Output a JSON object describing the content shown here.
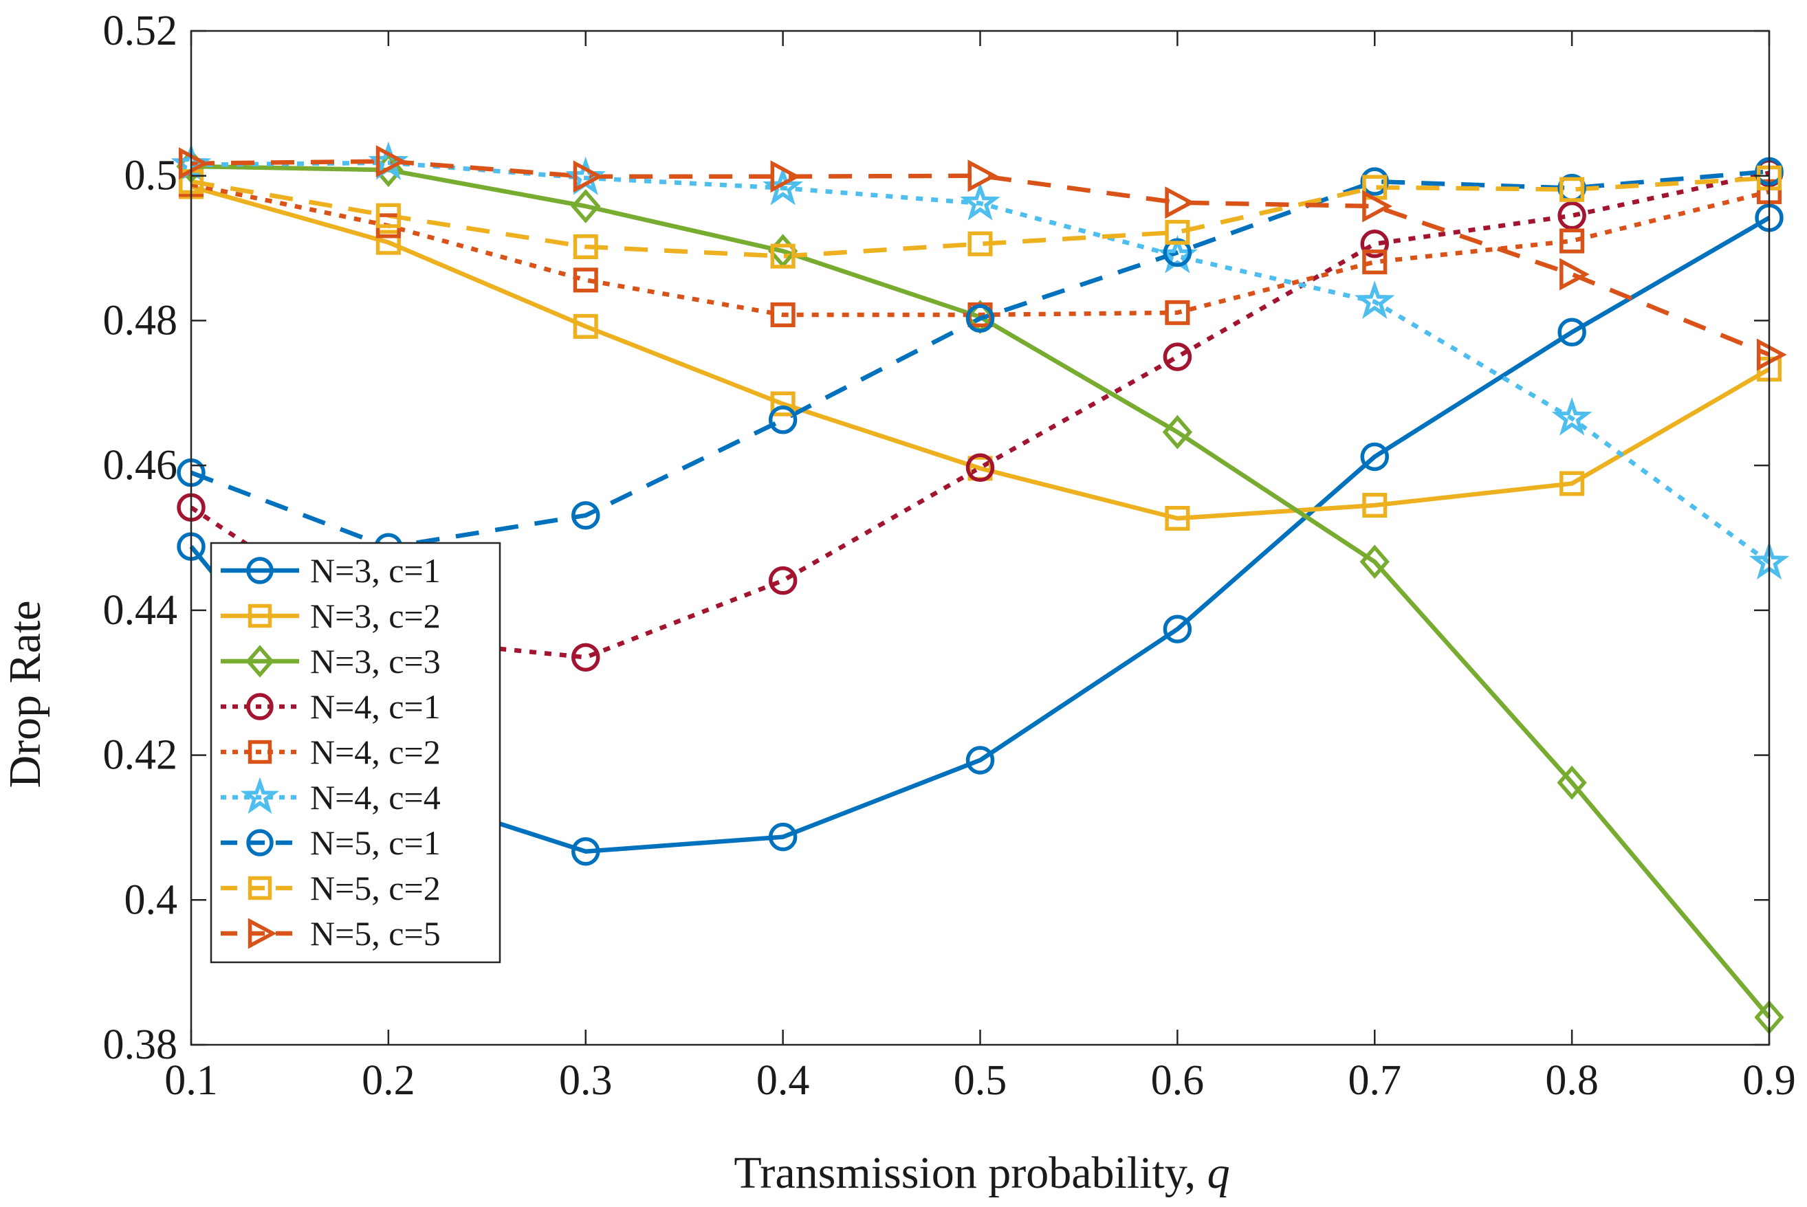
{
  "chart_data": {
    "type": "line",
    "title": "",
    "xlabel": "Transmission probability, ",
    "xlabel_var": "q",
    "ylabel": "Drop Rate",
    "xlim": [
      0.1,
      0.9
    ],
    "ylim": [
      0.38,
      0.52
    ],
    "x_ticks": [
      "0.1",
      "0.2",
      "0.3",
      "0.4",
      "0.5",
      "0.6",
      "0.7",
      "0.8",
      "0.9"
    ],
    "y_ticks": [
      "0.38",
      "0.4",
      "0.42",
      "0.44",
      "0.46",
      "0.48",
      "0.5",
      "0.52"
    ],
    "grid": false,
    "legend_position": "bottom-left",
    "x": [
      0.1,
      0.2,
      0.3,
      0.4,
      0.5,
      0.6,
      0.7,
      0.8,
      0.9
    ],
    "series": [
      {
        "name": "N=3, c=1",
        "color": "#0072BD",
        "dash": "solid",
        "marker": "circle",
        "values": [
          0.4488,
          0.4155,
          0.4067,
          0.4087,
          0.4193,
          0.4374,
          0.4612,
          0.4784,
          0.4942
        ]
      },
      {
        "name": "N=3, c=2",
        "color": "#EDB120",
        "dash": "solid",
        "marker": "square",
        "values": [
          0.4985,
          0.4908,
          0.4792,
          0.4685,
          0.4596,
          0.4527,
          0.4545,
          0.4575,
          0.4733
        ]
      },
      {
        "name": "N=3, c=3",
        "color": "#77AC30",
        "dash": "solid",
        "marker": "diamond",
        "values": [
          0.5013,
          0.5008,
          0.4958,
          0.4896,
          0.4805,
          0.4646,
          0.4467,
          0.4162,
          0.3838
        ]
      },
      {
        "name": "N=4, c=1",
        "color": "#A2142F",
        "dash": "dot",
        "marker": "circle",
        "values": [
          0.4542,
          0.4362,
          0.4335,
          0.4441,
          0.4597,
          0.475,
          0.4906,
          0.4945,
          0.5004
        ]
      },
      {
        "name": "N=4, c=2",
        "color": "#D95319",
        "dash": "dot",
        "marker": "square",
        "values": [
          0.4988,
          0.4931,
          0.4856,
          0.4808,
          0.4808,
          0.4811,
          0.4881,
          0.491,
          0.4978
        ]
      },
      {
        "name": "N=4, c=4",
        "color": "#4DBEEE",
        "dash": "dot",
        "marker": "star",
        "values": [
          0.5015,
          0.5018,
          0.4997,
          0.4983,
          0.4962,
          0.4889,
          0.4826,
          0.4665,
          0.4466
        ]
      },
      {
        "name": "N=5, c=1",
        "color": "#0072BD",
        "dash": "dash",
        "marker": "circle",
        "values": [
          0.459,
          0.4487,
          0.4531,
          0.4663,
          0.4803,
          0.4894,
          0.4992,
          0.4983,
          0.5006
        ]
      },
      {
        "name": "N=5, c=2",
        "color": "#EDB120",
        "dash": "dash",
        "marker": "square",
        "values": [
          0.4992,
          0.4945,
          0.4902,
          0.4889,
          0.4906,
          0.4922,
          0.4984,
          0.4981,
          0.4997
        ]
      },
      {
        "name": "N=5, c=5",
        "color": "#D95319",
        "dash": "dash",
        "marker": "triangle-right",
        "values": [
          0.5017,
          0.502,
          0.4999,
          0.4999,
          0.5,
          0.4963,
          0.4958,
          0.4864,
          0.4753
        ]
      }
    ]
  }
}
